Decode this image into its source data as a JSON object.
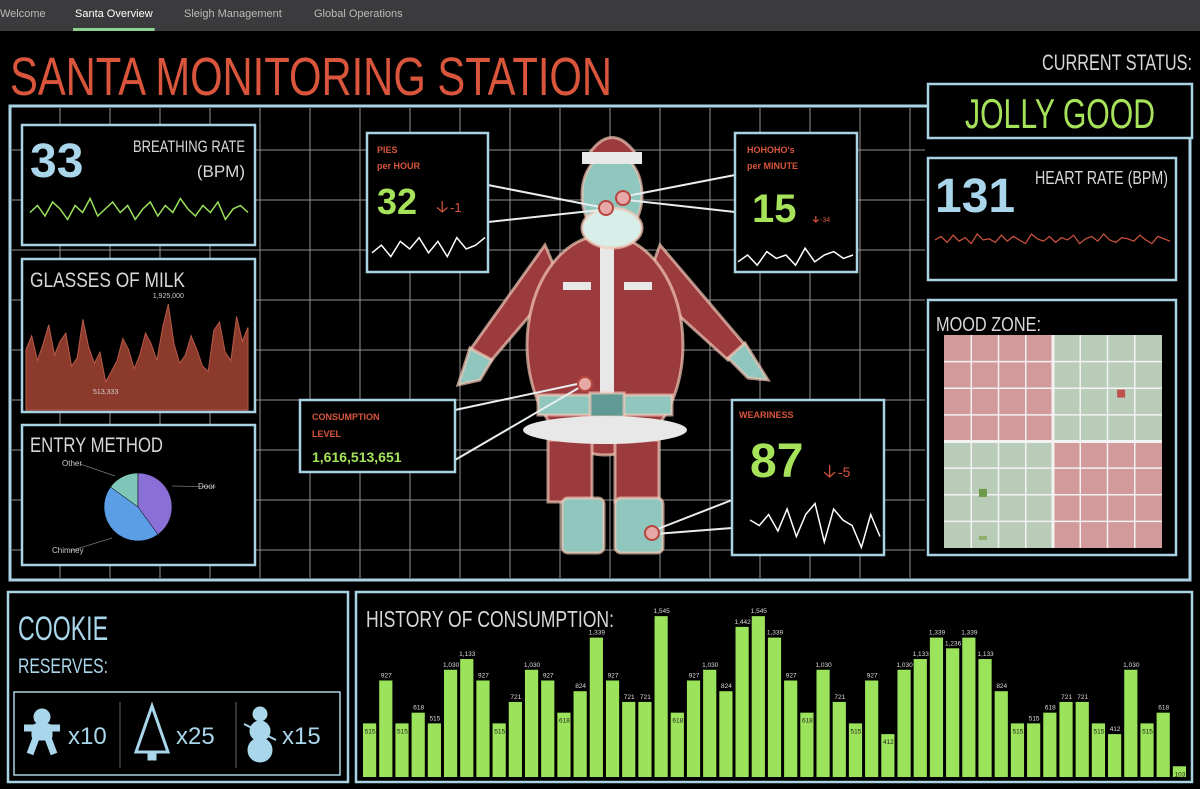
{
  "tabs": {
    "items": [
      "Welcome",
      "Santa Overview",
      "Sleigh Management",
      "Global Operations"
    ],
    "active": 1
  },
  "header": {
    "title": "SANTA MONITORING STATION",
    "status_label": "CURRENT STATUS:",
    "status": "JOLLY GOOD"
  },
  "chart_data": [
    {
      "type": "sparkline",
      "title": "BREATHING RATE",
      "subtitle": "(BPM)",
      "current": 33,
      "color": "#9be35a",
      "values": [
        5,
        7,
        4,
        8,
        6,
        3,
        7,
        5,
        9,
        4,
        6,
        8,
        5,
        7,
        3,
        6,
        8,
        4,
        7,
        5,
        9,
        6,
        4,
        7,
        5,
        8,
        3,
        6,
        7,
        5
      ],
      "ylim": [
        0,
        10
      ]
    },
    {
      "type": "area",
      "title": "GLASSES OF MILK",
      "color": "#8c3a2c",
      "values": [
        1100000,
        1350000,
        900000,
        1200000,
        1550000,
        1000000,
        1250000,
        1400000,
        800000,
        950000,
        1650000,
        1150000,
        850000,
        1050000,
        513333,
        700000,
        900000,
        1300000,
        1100000,
        750000,
        1000000,
        1400000,
        1200000,
        900000,
        1500000,
        1925000,
        1200000,
        850000,
        1000000,
        1350000,
        1100000,
        800000,
        700000,
        1450000,
        1600000,
        1050000,
        900000,
        1700000,
        1250000,
        1500000
      ],
      "ylim": [
        0,
        2000000
      ],
      "annotations": [
        {
          "value": 1925000,
          "label": "1,925,000"
        },
        {
          "value": 513333,
          "label": "513,333"
        }
      ]
    },
    {
      "type": "pie",
      "title": "ENTRY METHOD",
      "categories": [
        "Other",
        "Door",
        "Chimney"
      ],
      "values": [
        15,
        40,
        45
      ],
      "colors": [
        "#7fc6b8",
        "#8a6fd6",
        "#5b9ee6"
      ]
    },
    {
      "type": "metric",
      "title": "PIES",
      "subtitle": "per HOUR",
      "current": 32,
      "delta": -1,
      "color": "#ffffff",
      "values": [
        4,
        6,
        3,
        7,
        5,
        8,
        4,
        7,
        3,
        8,
        5,
        6,
        8
      ],
      "ylim": [
        0,
        10
      ]
    },
    {
      "type": "metric",
      "title": "HOHOHO's",
      "subtitle": "per MINUTE",
      "current": 15,
      "delta": -34,
      "color": "#ffffff",
      "values": [
        3,
        5,
        2,
        6,
        4,
        5,
        2,
        7,
        3,
        5,
        6,
        4,
        5
      ],
      "ylim": [
        0,
        10
      ]
    },
    {
      "type": "metric",
      "title": "WEARINESS",
      "current": 87,
      "delta": -5,
      "color": "#ffffff",
      "values": [
        6,
        5,
        7,
        4,
        8,
        3,
        7,
        9,
        2,
        8,
        6,
        5,
        1,
        7,
        3
      ],
      "ylim": [
        0,
        10
      ]
    },
    {
      "type": "sparkline",
      "title": "HEART RATE (BPM)",
      "current": 131,
      "color": "#d2553f",
      "values": [
        130,
        133,
        128,
        134,
        129,
        132,
        127,
        135,
        130,
        131,
        128,
        134,
        129,
        133,
        130,
        127,
        135,
        131,
        129,
        133,
        128,
        132,
        130,
        134,
        127,
        131,
        133,
        129,
        135,
        130,
        128,
        132,
        131,
        129,
        134,
        130,
        127,
        133,
        131,
        129
      ],
      "ylim": [
        120,
        140
      ]
    },
    {
      "type": "bar",
      "title": "HISTORY OF CONSUMPTION:",
      "color": "#9be35a",
      "ylim": [
        0,
        1700
      ],
      "values": [
        515,
        927,
        515,
        618,
        515,
        1030,
        1133,
        927,
        515,
        721,
        1030,
        927,
        618,
        824,
        1339,
        927,
        721,
        721,
        1545,
        618,
        927,
        1030,
        824,
        1442,
        1545,
        1339,
        927,
        618,
        1030,
        721,
        515,
        927,
        412,
        1030,
        1133,
        1339,
        1236,
        1339,
        1133,
        824,
        515,
        515,
        618,
        721,
        721,
        515,
        412,
        1030,
        515,
        618,
        103
      ],
      "value_labels": [
        "515",
        "927",
        "515",
        "618",
        "515",
        "1,030",
        "1,133",
        "927",
        "515",
        "721",
        "1,030",
        "927",
        "618",
        "824",
        "1,339",
        "927",
        "721",
        "721",
        "1,545",
        "618",
        "927",
        "1,030",
        "824",
        "1,442",
        "1,545",
        "1,339",
        "927",
        "618",
        "1,030",
        "721",
        "515",
        "927",
        "412",
        "1,030",
        "1,133",
        "1,339",
        "1,236",
        "1,339",
        "1,133",
        "824",
        "515",
        "515",
        "618",
        "721",
        "721",
        "515",
        "412",
        "1,030",
        "515",
        "618",
        "103"
      ]
    }
  ],
  "consumption": {
    "title": "CONSUMPTION",
    "subtitle": "LEVEL",
    "value": "1,616,513,651"
  },
  "mood": {
    "title": "MOOD ZONE:",
    "xlim": [
      0,
      8
    ],
    "ylim": [
      0,
      8
    ],
    "points": [
      {
        "x": 6.5,
        "y": 5.8,
        "color": "#c0504d"
      },
      {
        "x": 1.43,
        "y": 2.07,
        "color": "#6f9a4a"
      },
      {
        "x": 1.43,
        "y": 0.3,
        "color": "#8fb06a"
      }
    ]
  },
  "cookies": {
    "title": "COOKIE",
    "subtitle": "RESERVES:",
    "items": [
      "x10",
      "x25",
      "x15"
    ]
  }
}
